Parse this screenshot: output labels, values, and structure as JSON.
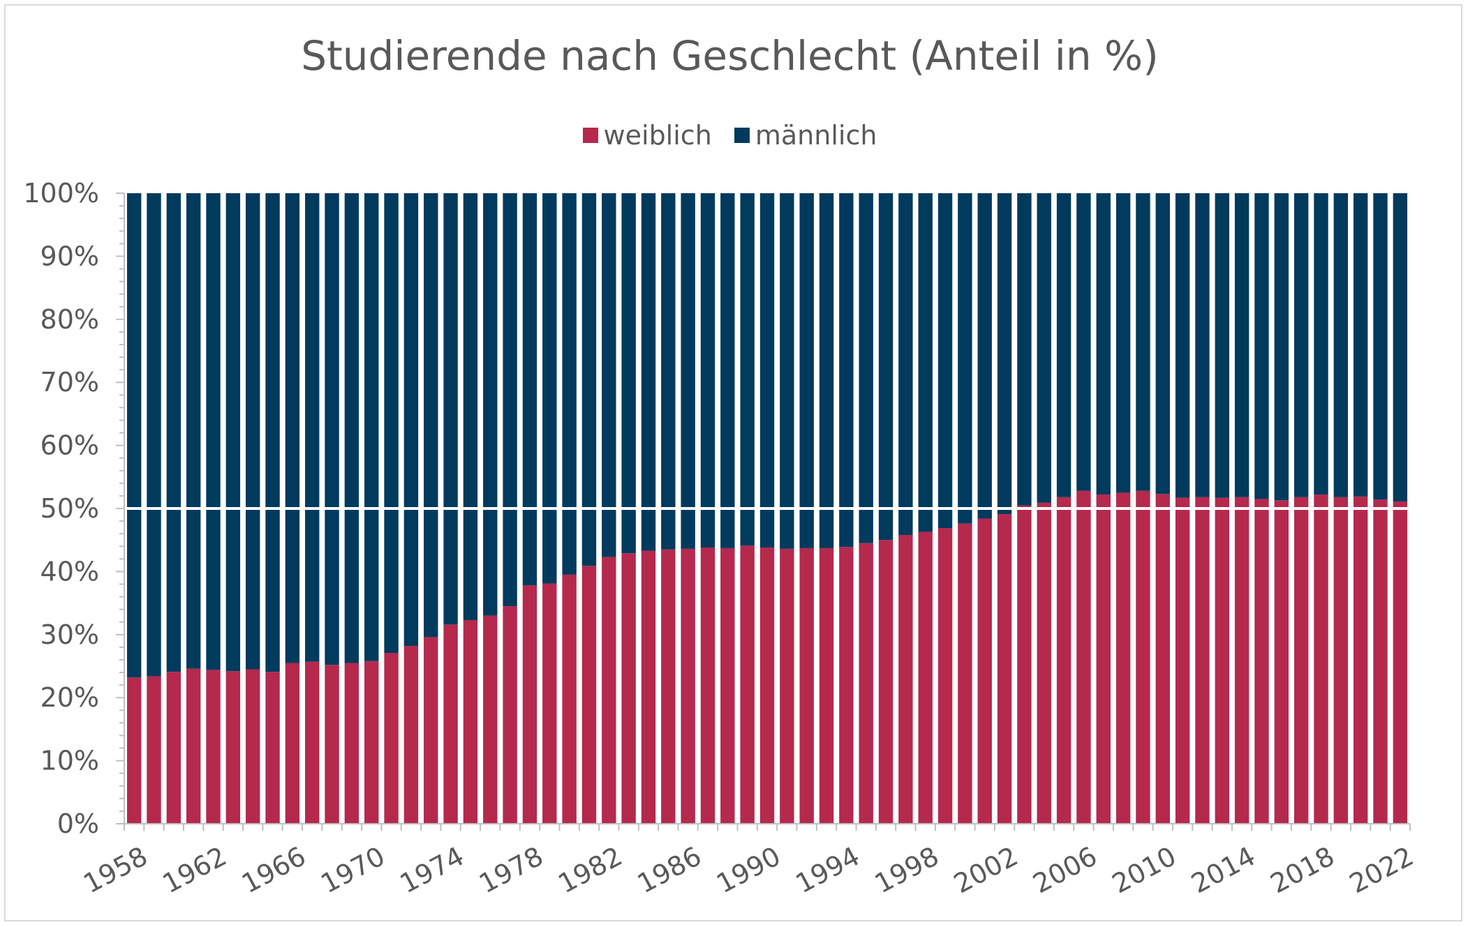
{
  "chart_data": {
    "type": "bar",
    "stacked": true,
    "title": "Studierende nach Geschlecht (Anteil in %)",
    "legend_position": "top",
    "ylim": [
      0,
      100
    ],
    "y_ticks": [
      "0%",
      "10%",
      "20%",
      "30%",
      "40%",
      "50%",
      "60%",
      "70%",
      "80%",
      "90%",
      "100%"
    ],
    "x_tick_labels": [
      "1958",
      "1962",
      "1966",
      "1970",
      "1974",
      "1978",
      "1982",
      "1986",
      "1990",
      "1994",
      "1998",
      "2002",
      "2006",
      "2010",
      "2014",
      "2018",
      "2022"
    ],
    "categories": [
      "1958",
      "1959",
      "1960",
      "1961",
      "1962",
      "1963",
      "1964",
      "1965",
      "1966",
      "1967",
      "1968",
      "1969",
      "1970",
      "1971",
      "1972",
      "1973",
      "1974",
      "1975",
      "1976",
      "1977",
      "1978",
      "1979",
      "1980",
      "1981",
      "1982",
      "1983",
      "1984",
      "1985",
      "1986",
      "1987",
      "1988",
      "1989",
      "1990",
      "1991",
      "1992",
      "1993",
      "1994",
      "1995",
      "1996",
      "1997",
      "1998",
      "1999",
      "2000",
      "2001",
      "2002",
      "2003",
      "2004",
      "2005",
      "2006",
      "2007",
      "2008",
      "2009",
      "2010",
      "2011",
      "2012",
      "2013",
      "2014",
      "2015",
      "2016",
      "2017",
      "2018",
      "2019",
      "2020",
      "2021",
      "2022"
    ],
    "series": [
      {
        "name": "weiblich",
        "color": "#b5294d",
        "values": [
          23.2,
          23.4,
          24.1,
          24.6,
          24.4,
          24.2,
          24.5,
          24.1,
          25.5,
          25.7,
          25.2,
          25.5,
          25.8,
          27.1,
          28.2,
          29.6,
          31.6,
          32.3,
          33.0,
          34.5,
          37.8,
          38.1,
          39.5,
          40.9,
          42.3,
          42.9,
          43.3,
          43.5,
          43.6,
          43.8,
          43.7,
          44.1,
          43.8,
          43.6,
          43.7,
          43.7,
          43.9,
          44.5,
          45.0,
          45.8,
          46.3,
          46.9,
          47.6,
          48.4,
          49.1,
          50.5,
          50.9,
          51.8,
          52.8,
          52.2,
          52.5,
          52.8,
          52.3,
          51.7,
          51.8,
          51.7,
          51.8,
          51.5,
          51.3,
          51.8,
          52.2,
          51.8,
          51.9,
          51.4,
          51.1
        ]
      },
      {
        "name": "männlich",
        "color": "#003a5d",
        "values": [
          76.8,
          76.6,
          75.9,
          75.4,
          75.6,
          75.8,
          75.5,
          75.9,
          74.5,
          74.3,
          74.8,
          74.5,
          74.2,
          72.9,
          71.8,
          70.4,
          68.4,
          67.7,
          67.0,
          65.5,
          62.2,
          61.9,
          60.5,
          59.1,
          57.7,
          57.1,
          56.7,
          56.5,
          56.4,
          56.2,
          56.3,
          55.9,
          56.2,
          56.4,
          56.3,
          56.3,
          56.1,
          55.5,
          55.0,
          54.2,
          53.7,
          53.1,
          52.4,
          51.6,
          50.9,
          49.5,
          49.1,
          48.2,
          47.2,
          47.8,
          47.5,
          47.2,
          47.7,
          48.3,
          48.2,
          48.3,
          48.2,
          48.5,
          48.7,
          48.2,
          47.8,
          48.2,
          48.1,
          48.6,
          48.9
        ]
      }
    ],
    "reference_line": 50,
    "colors": {
      "text": "#595959",
      "axis": "#bfbfbf",
      "reference_line": "#ffffff"
    }
  }
}
